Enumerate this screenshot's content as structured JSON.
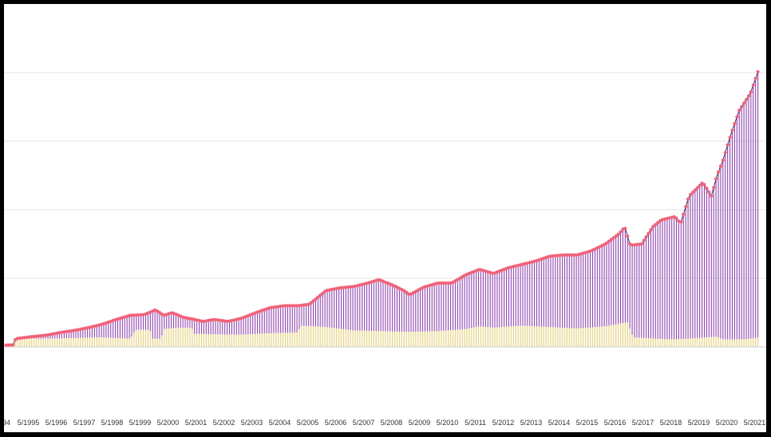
{
  "chart_data": {
    "type": "bar",
    "xlabel": "",
    "ylabel": "",
    "grid": true,
    "ylim": [
      0,
      400
    ],
    "y_gridlines": [
      0,
      100,
      200,
      300,
      400
    ],
    "x_tick_labels": [
      "94",
      "5/1995",
      "5/1996",
      "5/1997",
      "5/1998",
      "5/1999",
      "5/2000",
      "5/2001",
      "5/2002",
      "5/2003",
      "5/2004",
      "5/2005",
      "5/2006",
      "5/2007",
      "5/2008",
      "5/2009",
      "5/2010",
      "5/2011",
      "5/2012",
      "5/2013",
      "5/2014",
      "5/2015",
      "5/2016",
      "5/2017",
      "5/2018",
      "5/2019",
      "5/2020",
      "5/2021"
    ],
    "x_range": [
      1994.3,
      2022.0
    ],
    "keypoints_total": [
      [
        1994.3,
        2
      ],
      [
        1994.8,
        3
      ],
      [
        1994.9,
        12
      ],
      [
        1995.5,
        15
      ],
      [
        1996.0,
        17
      ],
      [
        1996.5,
        21
      ],
      [
        1997.0,
        24
      ],
      [
        1997.5,
        28
      ],
      [
        1998.0,
        33
      ],
      [
        1998.5,
        40
      ],
      [
        1999.0,
        46
      ],
      [
        1999.5,
        47
      ],
      [
        1999.9,
        54
      ],
      [
        2000.2,
        46
      ],
      [
        2000.5,
        50
      ],
      [
        2000.9,
        43
      ],
      [
        2001.3,
        40
      ],
      [
        2001.6,
        37
      ],
      [
        2002.0,
        40
      ],
      [
        2002.5,
        37
      ],
      [
        2003.0,
        42
      ],
      [
        2003.5,
        50
      ],
      [
        2004.0,
        57
      ],
      [
        2004.5,
        60
      ],
      [
        2005.0,
        60
      ],
      [
        2005.4,
        62
      ],
      [
        2005.7,
        72
      ],
      [
        2006.0,
        82
      ],
      [
        2006.5,
        86
      ],
      [
        2007.0,
        88
      ],
      [
        2007.5,
        93
      ],
      [
        2007.9,
        98
      ],
      [
        2008.4,
        90
      ],
      [
        2008.8,
        82
      ],
      [
        2009.0,
        76
      ],
      [
        2009.5,
        87
      ],
      [
        2010.0,
        93
      ],
      [
        2010.5,
        93
      ],
      [
        2011.0,
        105
      ],
      [
        2011.5,
        113
      ],
      [
        2012.0,
        107
      ],
      [
        2012.5,
        115
      ],
      [
        2013.0,
        120
      ],
      [
        2013.5,
        125
      ],
      [
        2014.0,
        132
      ],
      [
        2014.5,
        134
      ],
      [
        2015.0,
        134
      ],
      [
        2015.5,
        140
      ],
      [
        2016.0,
        150
      ],
      [
        2016.5,
        165
      ],
      [
        2016.7,
        175
      ],
      [
        2016.9,
        148
      ],
      [
        2017.3,
        150
      ],
      [
        2017.7,
        175
      ],
      [
        2018.0,
        185
      ],
      [
        2018.5,
        190
      ],
      [
        2018.7,
        180
      ],
      [
        2019.0,
        220
      ],
      [
        2019.5,
        240
      ],
      [
        2019.8,
        220
      ],
      [
        2020.0,
        250
      ],
      [
        2020.2,
        270
      ],
      [
        2020.5,
        310
      ],
      [
        2020.8,
        345
      ],
      [
        2021.2,
        370
      ],
      [
        2021.5,
        405
      ],
      [
        2021.7,
        380
      ],
      [
        2021.9,
        400
      ]
    ],
    "keypoints_base": [
      [
        1994.3,
        2
      ],
      [
        1994.9,
        12
      ],
      [
        1996.0,
        12
      ],
      [
        1998.0,
        14
      ],
      [
        1999.0,
        12
      ],
      [
        1999.2,
        25
      ],
      [
        1999.7,
        25
      ],
      [
        1999.8,
        12
      ],
      [
        2000.1,
        12
      ],
      [
        2000.2,
        26
      ],
      [
        2000.7,
        28
      ],
      [
        2001.2,
        28
      ],
      [
        2001.3,
        19
      ],
      [
        2002.5,
        18
      ],
      [
        2003.0,
        18
      ],
      [
        2004.0,
        20
      ],
      [
        2005.0,
        21
      ],
      [
        2005.1,
        31
      ],
      [
        2006.0,
        29
      ],
      [
        2007.0,
        24
      ],
      [
        2008.0,
        23
      ],
      [
        2009.0,
        22
      ],
      [
        2010.0,
        23
      ],
      [
        2011.0,
        26
      ],
      [
        2011.5,
        30
      ],
      [
        2012.0,
        28
      ],
      [
        2013.0,
        31
      ],
      [
        2014.0,
        29
      ],
      [
        2015.0,
        27
      ],
      [
        2016.0,
        30
      ],
      [
        2016.8,
        36
      ],
      [
        2017.0,
        14
      ],
      [
        2017.8,
        12
      ],
      [
        2018.3,
        11
      ],
      [
        2019.0,
        12
      ],
      [
        2020.0,
        15
      ],
      [
        2020.2,
        11
      ],
      [
        2021.0,
        11
      ],
      [
        2021.9,
        16
      ]
    ],
    "colors": {
      "bars": "#8e44ad",
      "line": "#3a2a5a",
      "markers": "#f06279",
      "base_bars": "#e8d68a",
      "grid": "#e4e4e4",
      "axis": "#cccccc"
    }
  }
}
